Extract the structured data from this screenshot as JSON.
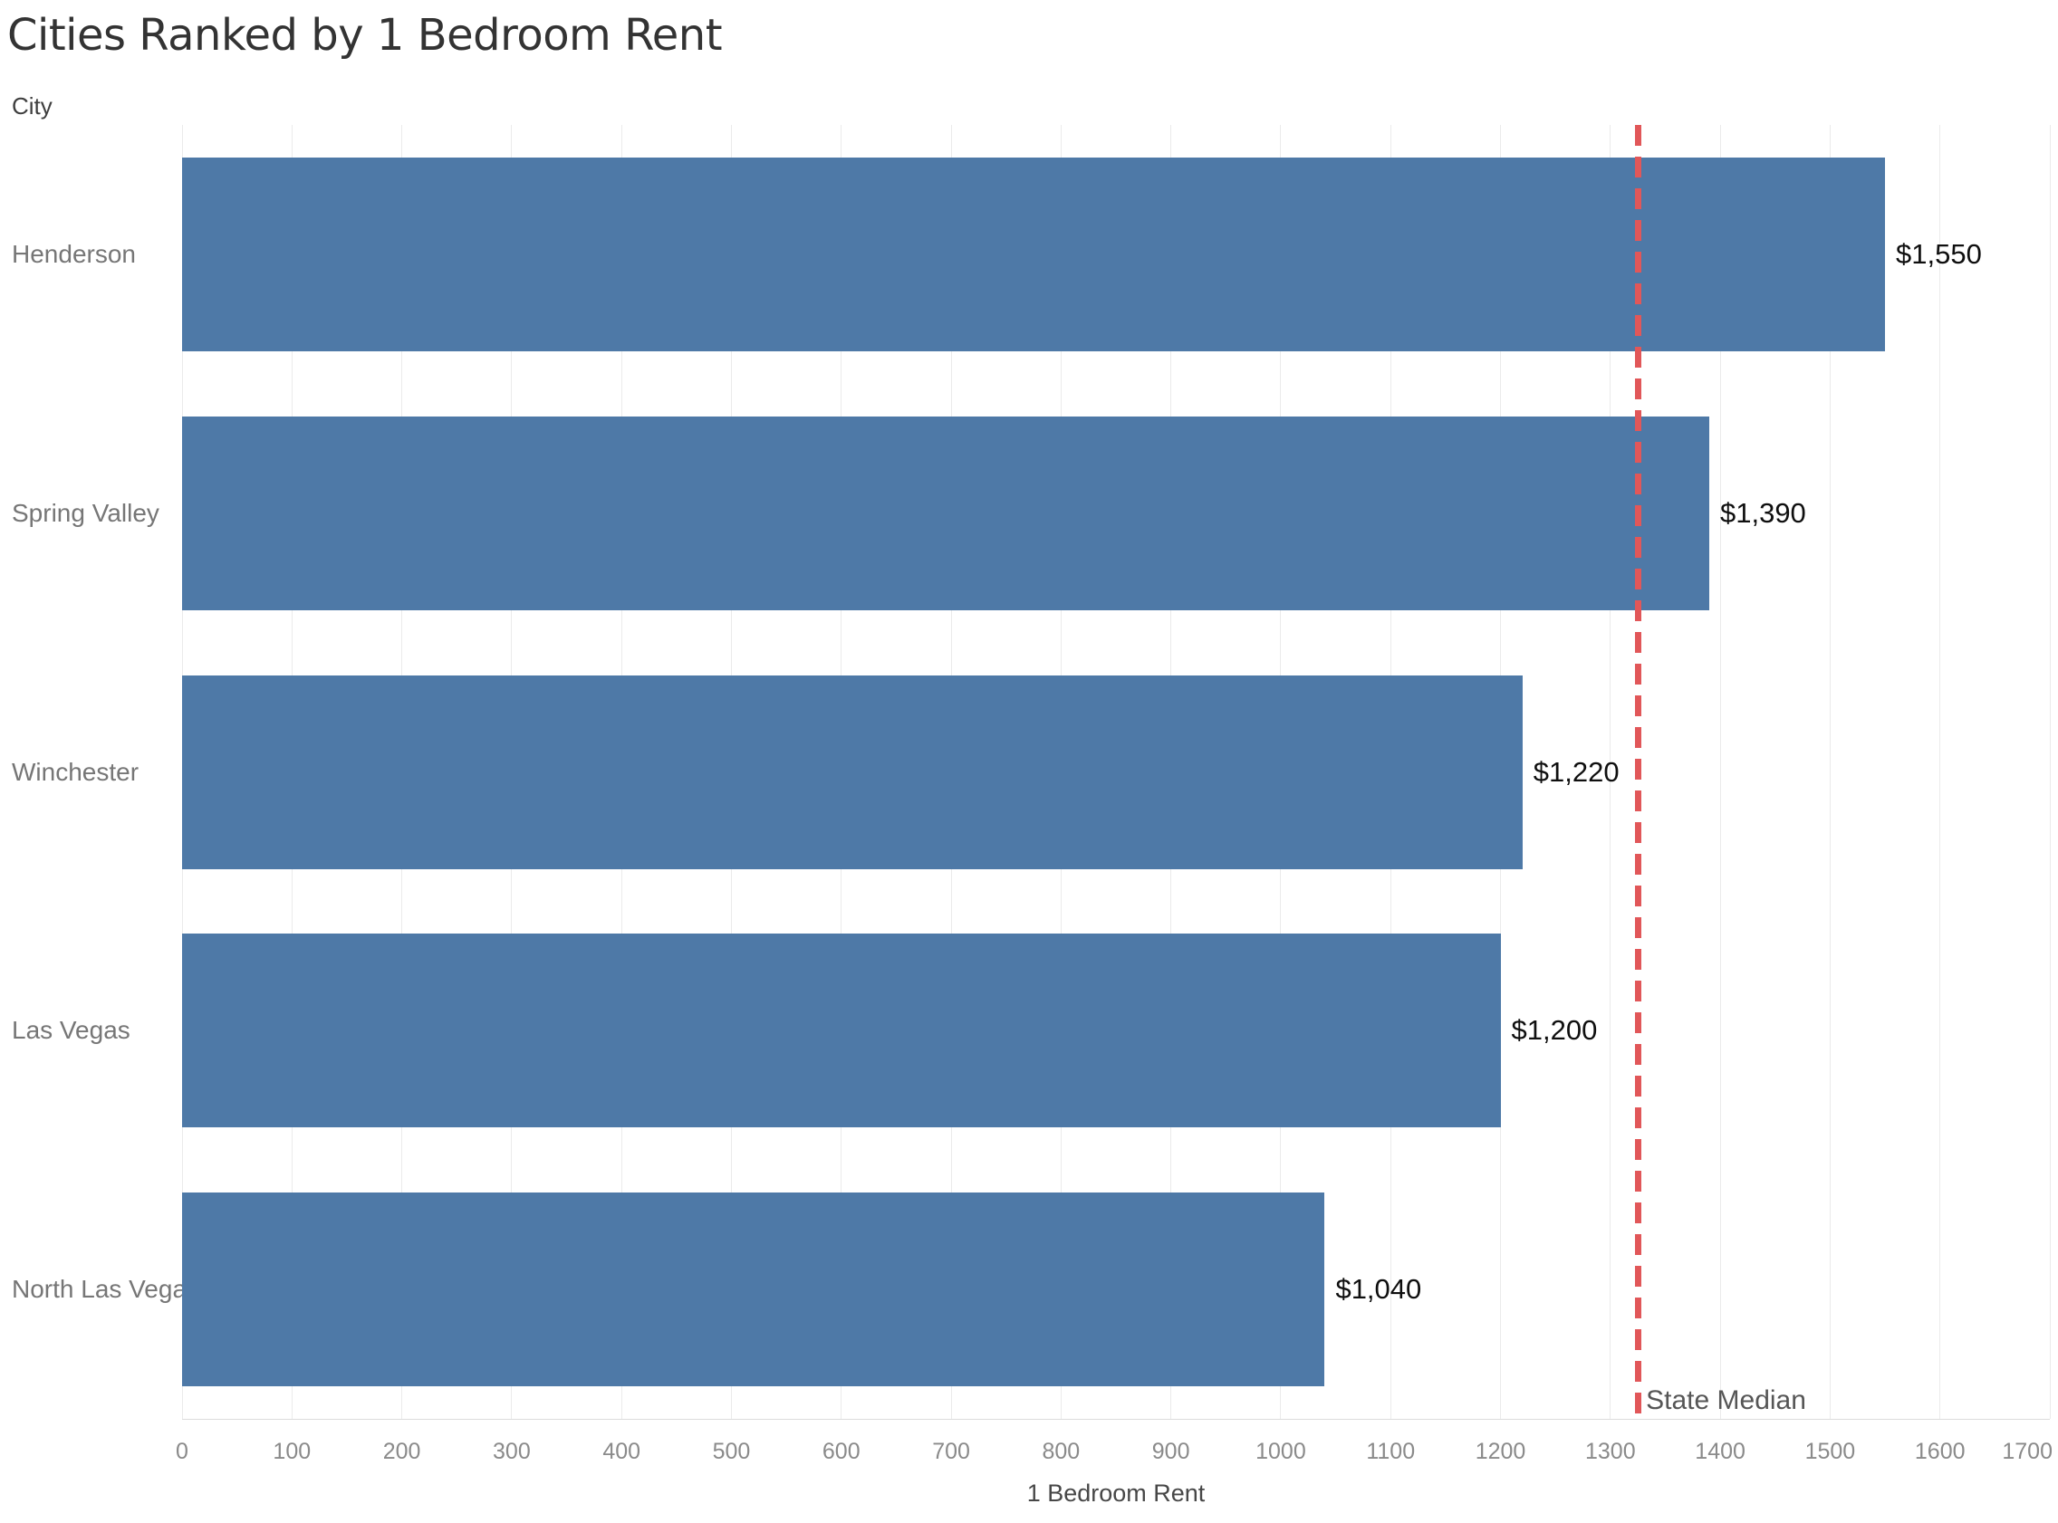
{
  "chart_data": {
    "type": "bar",
    "orientation": "horizontal",
    "title": "Cities Ranked by 1 Bedroom Rent",
    "ylabel": "City",
    "xlabel": "1 Bedroom Rent",
    "categories": [
      "Henderson",
      "Spring Valley",
      "Winchester",
      "Las Vegas",
      "North Las Vegas"
    ],
    "values": [
      1550,
      1390,
      1220,
      1200,
      1040
    ],
    "value_labels": [
      "$1,550",
      "$1,390",
      "$1,220",
      "$1,200",
      "$1,040"
    ],
    "xlim": [
      0,
      1700
    ],
    "tick_step": 100,
    "x_ticks": [
      "0",
      "100",
      "200",
      "300",
      "400",
      "500",
      "600",
      "700",
      "800",
      "900",
      "1000",
      "1100",
      "1200",
      "1300",
      "1400",
      "1500",
      "1600",
      "1700"
    ],
    "grid": true,
    "legend": "none",
    "reference_line": {
      "label": "State Median",
      "value": 1325
    },
    "colors": {
      "bar": "#4e79a7",
      "reference_line": "#e15759",
      "title_text": "#333333",
      "label_text": "#767676",
      "tick_text": "#8a8a8a",
      "value_text": "#0f0f0f"
    }
  }
}
